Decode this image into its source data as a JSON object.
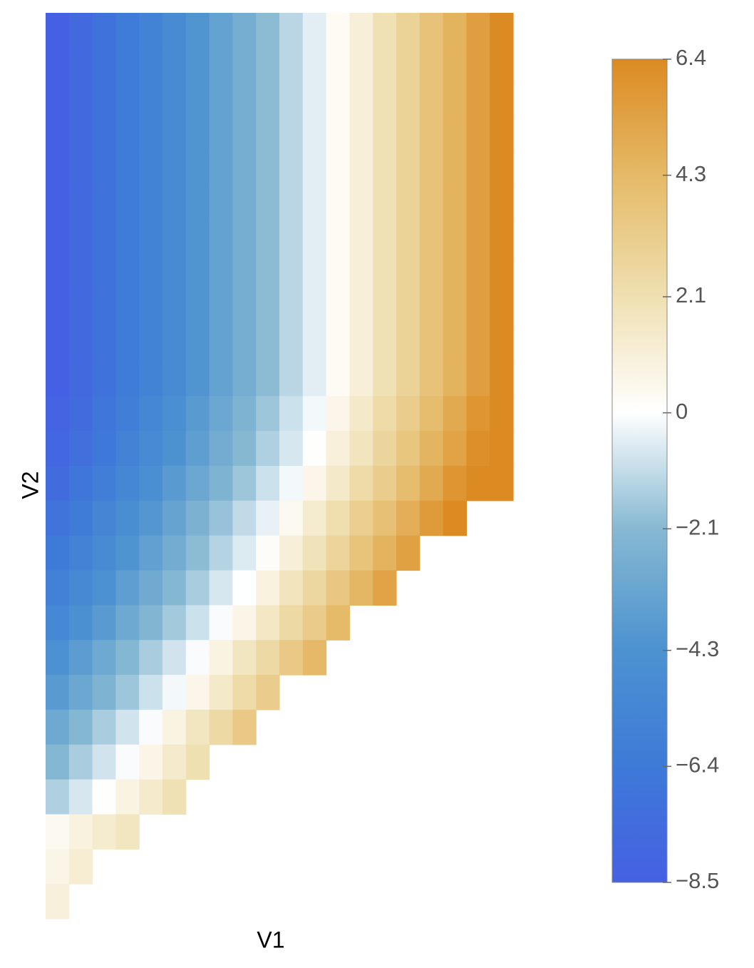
{
  "chart_data": {
    "type": "heatmap",
    "xlabel": "V1",
    "ylabel": "V2",
    "clim": [
      -8.5,
      6.4
    ],
    "colormap": [
      "#4560e3",
      "#3e7ad8",
      "#4d93d0",
      "#86b8d2",
      "#ffffff",
      "#efdfb0",
      "#e5ba68",
      "#dc8a22"
    ],
    "colorbar_ticks": [
      {
        "value": -8.5,
        "label": "−8.5"
      },
      {
        "value": -6.4,
        "label": "−6.4"
      },
      {
        "value": -4.3,
        "label": "−4.3"
      },
      {
        "value": -2.1,
        "label": "−2.1"
      },
      0,
      2.1,
      4.3,
      6.4
    ],
    "z": [
      [
        -8.5,
        -7.8,
        -7.0,
        -6.3,
        -5.6,
        -4.9,
        -4.1,
        -3.4,
        -2.7,
        -2.0,
        -1.2,
        -0.5,
        0.3,
        1.1,
        2.0,
        2.9,
        3.8,
        4.6,
        5.5,
        6.4
      ],
      [
        -8.5,
        -7.8,
        -7.0,
        -6.3,
        -5.6,
        -4.9,
        -4.1,
        -3.4,
        -2.7,
        -2.0,
        -1.2,
        -0.5,
        0.3,
        1.1,
        2.0,
        2.9,
        3.8,
        4.6,
        5.5,
        6.4
      ],
      [
        -8.5,
        -7.8,
        -7.0,
        -6.3,
        -5.6,
        -4.9,
        -4.1,
        -3.4,
        -2.7,
        -2.0,
        -1.2,
        -0.5,
        0.3,
        1.1,
        2.0,
        2.9,
        3.8,
        4.6,
        5.5,
        6.4
      ],
      [
        -8.5,
        -7.8,
        -7.0,
        -6.3,
        -5.6,
        -4.9,
        -4.1,
        -3.4,
        -2.7,
        -2.0,
        -1.2,
        -0.5,
        0.3,
        1.1,
        2.0,
        2.9,
        3.8,
        4.6,
        5.5,
        6.4
      ],
      [
        -8.5,
        -7.8,
        -7.0,
        -6.3,
        -5.6,
        -4.9,
        -4.1,
        -3.4,
        -2.7,
        -2.0,
        -1.2,
        -0.5,
        0.3,
        1.1,
        2.0,
        2.9,
        3.8,
        4.6,
        5.5,
        6.4
      ],
      [
        -8.5,
        -7.8,
        -7.0,
        -6.3,
        -5.6,
        -4.9,
        -4.1,
        -3.4,
        -2.7,
        -2.0,
        -1.2,
        -0.5,
        0.3,
        1.1,
        2.0,
        2.9,
        3.8,
        4.6,
        5.5,
        6.4
      ],
      [
        -8.5,
        -7.8,
        -7.0,
        -6.3,
        -5.6,
        -4.9,
        -4.1,
        -3.4,
        -2.7,
        -2.0,
        -1.2,
        -0.5,
        0.3,
        1.1,
        2.0,
        2.9,
        3.8,
        4.6,
        5.5,
        6.4
      ],
      [
        -8.5,
        -7.8,
        -7.0,
        -6.3,
        -5.6,
        -4.9,
        -4.1,
        -3.4,
        -2.7,
        -2.0,
        -1.2,
        -0.5,
        0.3,
        1.1,
        2.0,
        2.9,
        3.8,
        4.6,
        5.5,
        6.4
      ],
      [
        -8.5,
        -7.8,
        -7.0,
        -6.3,
        -5.6,
        -4.9,
        -4.1,
        -3.4,
        -2.7,
        -2.0,
        -1.2,
        -0.5,
        0.3,
        1.1,
        2.0,
        2.9,
        3.8,
        4.6,
        5.5,
        6.4
      ],
      [
        -8.5,
        -7.8,
        -7.0,
        -6.3,
        -5.6,
        -4.9,
        -4.1,
        -3.4,
        -2.7,
        -2.0,
        -1.2,
        -0.5,
        0.3,
        1.1,
        2.0,
        2.9,
        3.8,
        4.6,
        5.5,
        6.4
      ],
      [
        -8.5,
        -7.8,
        -7.0,
        -6.3,
        -5.6,
        -4.9,
        -4.1,
        -3.4,
        -2.7,
        -2.0,
        -1.2,
        -0.5,
        0.3,
        1.1,
        2.0,
        2.9,
        3.8,
        4.6,
        5.5,
        6.4
      ],
      [
        -8.2,
        -7.5,
        -6.7,
        -6.0,
        -5.3,
        -4.6,
        -3.8,
        -3.1,
        -2.4,
        -1.7,
        -0.9,
        -0.2,
        0.6,
        1.5,
        2.4,
        3.2,
        4.1,
        5.0,
        5.9,
        6.4
      ],
      [
        -7.9,
        -7.2,
        -6.5,
        -5.7,
        -5.0,
        -4.3,
        -3.6,
        -2.8,
        -2.1,
        -1.4,
        -0.7,
        0.1,
        1.0,
        1.8,
        2.7,
        3.6,
        4.5,
        5.3,
        6.2,
        6.4
      ],
      [
        -7.5,
        -6.7,
        -6.0,
        -5.3,
        -4.6,
        -3.8,
        -3.1,
        -2.4,
        -1.7,
        -0.9,
        -0.2,
        0.6,
        1.5,
        2.4,
        3.2,
        4.1,
        5.0,
        5.9,
        6.4,
        6.4
      ],
      [
        -6.9,
        -6.2,
        -5.4,
        -4.7,
        -4.0,
        -3.3,
        -2.5,
        -1.8,
        -1.1,
        -0.4,
        0.4,
        1.3,
        2.2,
        3.1,
        3.9,
        4.8,
        5.7,
        6.4,
        null,
        null
      ],
      [
        -6.4,
        -5.7,
        -4.9,
        -4.2,
        -3.5,
        -2.8,
        -2.0,
        -1.3,
        -0.6,
        0.2,
        1.1,
        1.9,
        2.8,
        3.7,
        4.6,
        5.4,
        null,
        null,
        null,
        null
      ],
      [
        -5.8,
        -5.1,
        -4.4,
        -3.6,
        -2.9,
        -2.2,
        -1.5,
        -0.7,
        0,
        0.9,
        1.8,
        2.6,
        3.5,
        4.4,
        5.3,
        null,
        null,
        null,
        null,
        null
      ],
      [
        -5.2,
        -4.5,
        -3.8,
        -3.0,
        -2.3,
        -1.6,
        -0.9,
        -0.1,
        0.7,
        1.6,
        2.5,
        3.3,
        4.2,
        null,
        null,
        null,
        null,
        null,
        null,
        null
      ],
      [
        -4.4,
        -3.7,
        -3.0,
        -2.2,
        -1.5,
        -0.8,
        -0.1,
        0.8,
        1.7,
        2.5,
        3.4,
        4.3,
        null,
        null,
        null,
        null,
        null,
        null,
        null,
        null
      ],
      [
        -3.8,
        -3.1,
        -2.4,
        -1.7,
        -0.9,
        -0.2,
        0.6,
        1.5,
        2.4,
        3.2,
        null,
        null,
        null,
        null,
        null,
        null,
        null,
        null,
        null,
        null
      ],
      [
        -3.0,
        -2.2,
        -1.5,
        -0.8,
        -0.1,
        0.8,
        1.7,
        2.5,
        3.4,
        null,
        null,
        null,
        null,
        null,
        null,
        null,
        null,
        null,
        null,
        null
      ],
      [
        -2.2,
        -1.5,
        -0.8,
        -0.1,
        0.7,
        1.4,
        2.1,
        null,
        null,
        null,
        null,
        null,
        null,
        null,
        null,
        null,
        null,
        null,
        null,
        null
      ],
      [
        -1.4,
        -0.7,
        0.1,
        0.8,
        1.4,
        2.0,
        null,
        null,
        null,
        null,
        null,
        null,
        null,
        null,
        null,
        null,
        null,
        null,
        null,
        null
      ],
      [
        0.4,
        0.9,
        1.3,
        1.7,
        null,
        null,
        null,
        null,
        null,
        null,
        null,
        null,
        null,
        null,
        null,
        null,
        null,
        null,
        null,
        null
      ],
      [
        0.7,
        1.2,
        null,
        null,
        null,
        null,
        null,
        null,
        null,
        null,
        null,
        null,
        null,
        null,
        null,
        null,
        null,
        null,
        null,
        null
      ],
      [
        1.0,
        null,
        null,
        null,
        null,
        null,
        null,
        null,
        null,
        null,
        null,
        null,
        null,
        null,
        null,
        null,
        null,
        null,
        null,
        null
      ]
    ]
  }
}
